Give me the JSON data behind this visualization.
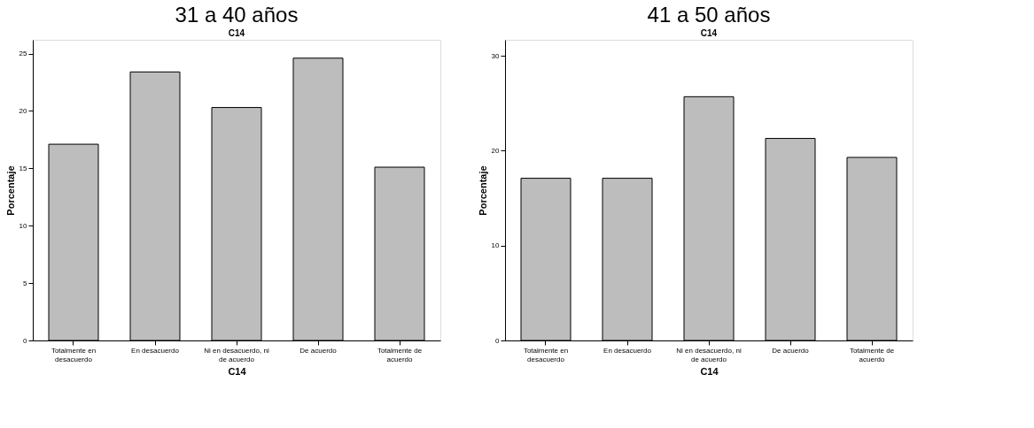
{
  "chart_data": [
    {
      "type": "bar",
      "title": "31 a 40 años",
      "subtitle": "C14",
      "xlabel": "C14",
      "ylabel": "Porcentaje",
      "categories": [
        "Totalmente en desacuerdo",
        "En desacuerdo",
        "Ni en desacuerdo, ni de acuerdo",
        "De acuerdo",
        "Totalmente de acuerdo"
      ],
      "values": [
        17.1,
        23.4,
        20.3,
        24.6,
        15.1
      ],
      "color": "#bdbdbd",
      "ylim": [
        0,
        26.2
      ],
      "yticks": [
        0,
        5,
        10,
        15,
        20,
        25
      ],
      "grid": false
    },
    {
      "type": "bar",
      "title": "41 a 50 años",
      "subtitle": "C14",
      "xlabel": "C14",
      "ylabel": "Porcentaje",
      "categories": [
        "Totalmente en desacuerdo",
        "En desacuerdo",
        "Ni en desacuerdo, ni de acuerdo",
        "De acuerdo",
        "Totalmente de acuerdo"
      ],
      "values": [
        17.1,
        17.1,
        25.7,
        21.3,
        19.3
      ],
      "color": "#bdbdbd",
      "ylim": [
        0,
        31.7
      ],
      "yticks": [
        0,
        10,
        20,
        30
      ],
      "grid": false
    }
  ]
}
